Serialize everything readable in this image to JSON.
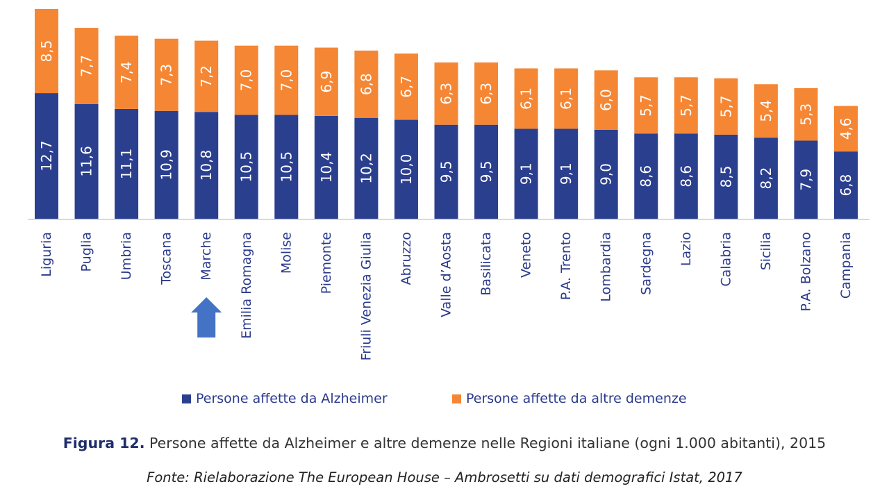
{
  "chart_data": {
    "type": "bar",
    "stacked": true,
    "categories": [
      "Liguria",
      "Puglia",
      "Umbria",
      "Toscana",
      "Marche",
      "Emilia Romagna",
      "Molise",
      "Piemonte",
      "Friuli Venezia Giulia",
      "Abruzzo",
      "Valle d’Aosta",
      "Basilicata",
      "Veneto",
      "P.A. Trento",
      "Lombardia",
      "Sardegna",
      "Lazio",
      "Calabria",
      "Sicilia",
      "P.A. Bolzano",
      "Campania"
    ],
    "series": [
      {
        "name": "Persone affette da Alzheimer",
        "color": "#2b3f8f",
        "values": [
          12.7,
          11.6,
          11.1,
          10.9,
          10.8,
          10.5,
          10.5,
          10.4,
          10.2,
          10.0,
          9.5,
          9.5,
          9.1,
          9.1,
          9.0,
          8.6,
          8.6,
          8.5,
          8.2,
          7.9,
          6.8
        ],
        "labels": [
          "12,7",
          "11,6",
          "11,1",
          "10,9",
          "10,8",
          "10,5",
          "10,5",
          "10,4",
          "10,2",
          "10,0",
          "9,5",
          "9,5",
          "9,1",
          "9,1",
          "9,0",
          "8,6",
          "8,6",
          "8,5",
          "8,2",
          "7,9",
          "6,8"
        ]
      },
      {
        "name": "Persone affette da altre demenze",
        "color": "#f58634",
        "values": [
          8.5,
          7.7,
          7.4,
          7.3,
          7.2,
          7.0,
          7.0,
          6.9,
          6.8,
          6.7,
          6.3,
          6.3,
          6.1,
          6.1,
          6.0,
          5.7,
          5.7,
          5.7,
          5.4,
          5.3,
          4.6
        ],
        "labels": [
          "8,5",
          "7,7",
          "7,4",
          "7,3",
          "7,2",
          "7,0",
          "7,0",
          "6,9",
          "6,8",
          "6,7",
          "6,3",
          "6,3",
          "6,1",
          "6,1",
          "6,0",
          "5,7",
          "5,7",
          "5,7",
          "5,4",
          "5,3",
          "4,6"
        ]
      }
    ],
    "ylim": [
      0,
      21.2
    ],
    "grid": false,
    "legend_position": "bottom",
    "highlight": {
      "category": "Marche",
      "marker": "up-arrow",
      "color": "#4472c4"
    }
  },
  "caption": {
    "figure_label": "Figura 12.",
    "text": "Persone affette da Alzheimer e altre demenze nelle Regioni italiane (ogni 1.000 abitanti), 2015",
    "source": "Fonte: Rielaborazione The European House – Ambrosetti su dati demografici Istat, 2017"
  }
}
